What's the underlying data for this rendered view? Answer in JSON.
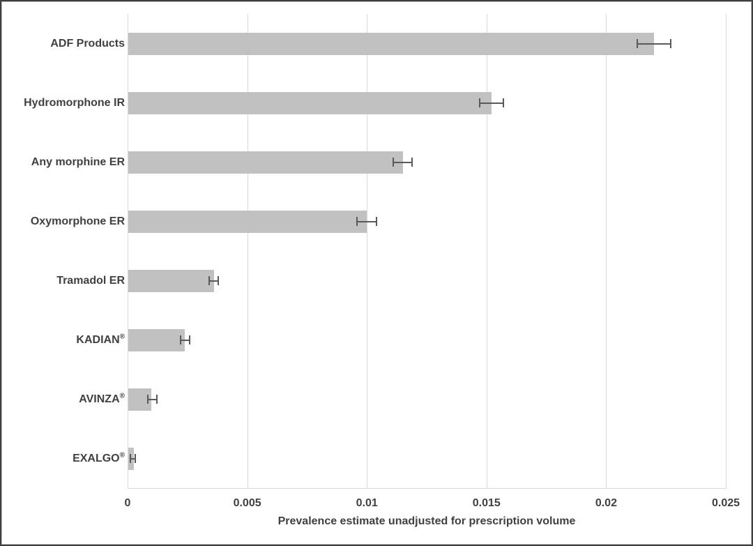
{
  "chart_data": {
    "type": "bar",
    "orientation": "horizontal",
    "title": "",
    "xlabel": "Prevalence estimate unadjusted for prescription volume",
    "ylabel": "",
    "xlim": [
      0,
      0.025
    ],
    "x_ticks": [
      0,
      0.005,
      0.01,
      0.015,
      0.02,
      0.025
    ],
    "x_tick_labels": [
      "0",
      "0.005",
      "0.01",
      "0.015",
      "0.02",
      "0.025"
    ],
    "grid": "vertical-only",
    "legend": "none",
    "categories": [
      "ADF Products",
      "Hydromorphone IR",
      "Any morphine ER",
      "Oxymorphone ER",
      "Tramadol ER",
      "KADIAN®",
      "AVINZA®",
      "EXALGO®"
    ],
    "values": [
      0.022,
      0.0152,
      0.0115,
      0.01,
      0.0036,
      0.0024,
      0.001,
      0.00025
    ],
    "error_bars": {
      "type": "confidence-interval-caps",
      "low": [
        0.0213,
        0.0147,
        0.0111,
        0.0096,
        0.0034,
        0.0022,
        0.00085,
        0.00013
      ],
      "high": [
        0.0227,
        0.0157,
        0.0119,
        0.0104,
        0.0038,
        0.0026,
        0.00122,
        0.00031
      ]
    },
    "colors": {
      "bar_fill": "#c1c1c1",
      "error_bar": "#595959",
      "gridline": "#d9d9d9",
      "text": "#404040",
      "figure_border": "#3f3f3f",
      "background": "#ffffff"
    }
  }
}
